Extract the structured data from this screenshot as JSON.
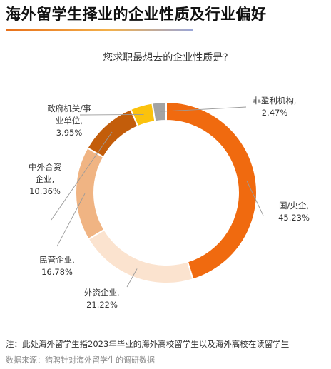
{
  "title": "海外留学生择业的企业性质及行业偏好",
  "chart_data": {
    "type": "pie",
    "variant": "donut",
    "title": "您求职最想去的企业性质是?",
    "slices": [
      {
        "label_lines": [
          "国/央企,",
          "45.23%"
        ],
        "name": "国/央企",
        "value": 45.23,
        "color": "#f06a0f"
      },
      {
        "label_lines": [
          "外资企业,",
          "21.22%"
        ],
        "name": "外资企业",
        "value": 21.22,
        "color": "#fbe3cf"
      },
      {
        "label_lines": [
          "民营企业,",
          "16.78%"
        ],
        "name": "民营企业",
        "value": 16.78,
        "color": "#f0b483"
      },
      {
        "label_lines": [
          "中外合资",
          "企业,",
          "10.36%"
        ],
        "name": "中外合资企业",
        "value": 10.36,
        "color": "#c35d0a"
      },
      {
        "label_lines": [
          "政府机关/事",
          "业单位,",
          "3.95%"
        ],
        "name": "政府机关/事业单位",
        "value": 3.95,
        "color": "#fbc20d"
      },
      {
        "label_lines": [
          "非盈利机构,",
          "2.47%"
        ],
        "name": "非盈利机构",
        "value": 2.47,
        "color": "#a3a3a3"
      }
    ],
    "legend": "none"
  },
  "footnote": "注：此处海外留学生指2023年毕业的海外高校留学生以及海外高校在读留学生",
  "source": "数据来源：猎聘针对海外留学生的调研数据"
}
